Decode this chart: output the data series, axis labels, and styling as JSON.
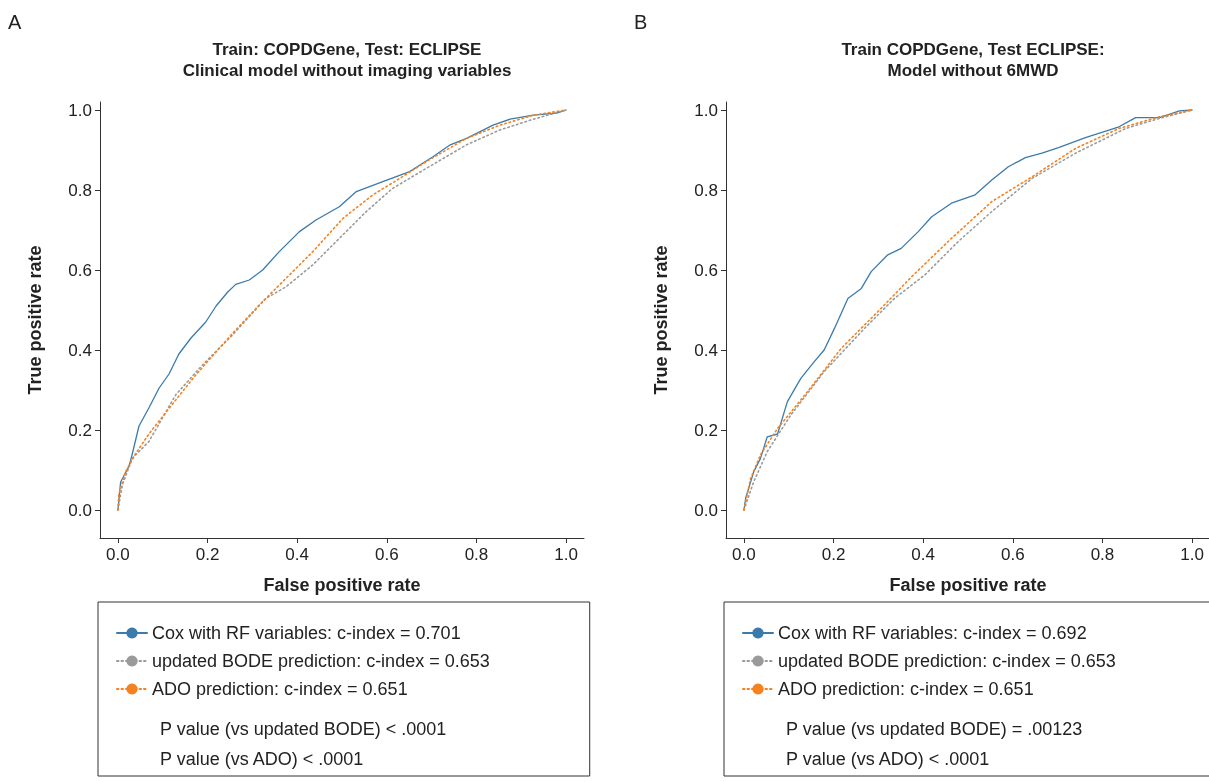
{
  "chart_data": [
    {
      "type": "line",
      "title": "Train: COPDGene, Test: ECLIPSE",
      "subtitle": "Clinical model without imaging variables",
      "xlabel": "False positive rate",
      "ylabel": "True positive rate",
      "annotations": [
        "A",
        "P value (vs updated BODE) < .0001",
        "P value (vs ADO) < .0001"
      ],
      "xlim": [
        -0.04,
        1.04
      ],
      "ylim": [
        -0.07,
        1.02
      ],
      "xticks": [
        {
          "value": 0,
          "label": "0.0"
        },
        {
          "value": 0.2,
          "label": "0.2"
        },
        {
          "value": 0.4,
          "label": "0.4"
        },
        {
          "value": 0.6,
          "label": "0.6"
        },
        {
          "value": 0.8,
          "label": "0.8"
        },
        {
          "value": 1,
          "label": "1.0"
        }
      ],
      "yticks": [
        {
          "value": 0,
          "label": "0.0"
        },
        {
          "value": 0.2,
          "label": "0.2"
        },
        {
          "value": 0.4,
          "label": "0.4"
        },
        {
          "value": 0.6,
          "label": "0.6"
        },
        {
          "value": 0.8,
          "label": "0.8"
        },
        {
          "value": 1,
          "label": "1.0"
        }
      ],
      "grid": false,
      "legend": "bottom",
      "marker": "none",
      "series": [
        {
          "name": "Cox with RF variables: c-index = 0.701",
          "color": "#3b7bab",
          "line_style": "solid",
          "x": [
            0,
            0.006,
            0.025,
            0.032,
            0.047,
            0.069,
            0.092,
            0.114,
            0.136,
            0.163,
            0.196,
            0.219,
            0.245,
            0.263,
            0.293,
            0.323,
            0.36,
            0.405,
            0.442,
            0.494,
            0.532,
            0.591,
            0.651,
            0.703,
            0.74,
            0.778,
            0.837,
            0.875,
            0.927,
            0.979,
            1
          ],
          "values": [
            0,
            0.07,
            0.11,
            0.14,
            0.21,
            0.255,
            0.305,
            0.34,
            0.39,
            0.43,
            0.47,
            0.51,
            0.545,
            0.564,
            0.575,
            0.6,
            0.646,
            0.696,
            0.725,
            0.758,
            0.796,
            0.821,
            0.846,
            0.883,
            0.912,
            0.929,
            0.962,
            0.977,
            0.987,
            0.992,
            1
          ]
        },
        {
          "name": "updated BODE prediction: c-index = 0.653",
          "color": "#9a9a9a",
          "line_style": "dotted",
          "x": [
            0,
            0.01,
            0.032,
            0.069,
            0.129,
            0.189,
            0.256,
            0.33,
            0.375,
            0.435,
            0.494,
            0.554,
            0.613,
            0.688,
            0.778,
            0.852,
            0.927,
            1
          ],
          "values": [
            0,
            0.063,
            0.129,
            0.171,
            0.288,
            0.363,
            0.438,
            0.529,
            0.558,
            0.613,
            0.679,
            0.746,
            0.804,
            0.854,
            0.913,
            0.95,
            0.977,
            1
          ]
        },
        {
          "name": "ADO prediction: c-index = 0.651",
          "color": "#f5821f",
          "line_style": "dotted",
          "x": [
            0,
            0.002,
            0.017,
            0.039,
            0.069,
            0.114,
            0.174,
            0.256,
            0.315,
            0.375,
            0.435,
            0.502,
            0.569,
            0.629,
            0.688,
            0.778,
            0.852,
            0.927,
            1
          ],
          "values": [
            0,
            0.04,
            0.096,
            0.14,
            0.19,
            0.254,
            0.338,
            0.442,
            0.512,
            0.579,
            0.646,
            0.729,
            0.788,
            0.829,
            0.871,
            0.929,
            0.962,
            0.987,
            1
          ]
        }
      ]
    },
    {
      "type": "line",
      "title": "Train COPDGene, Test ECLIPSE:",
      "subtitle": "Model without 6MWD",
      "xlabel": "False positive rate",
      "ylabel": "True positive rate",
      "annotations": [
        "B",
        "P value (vs updated BODE) = .00123",
        "P value (vs ADO) < .0001"
      ],
      "xlim": [
        -0.04,
        1.04
      ],
      "ylim": [
        -0.07,
        1.02
      ],
      "xticks": [
        {
          "value": 0,
          "label": "0.0"
        },
        {
          "value": 0.2,
          "label": "0.2"
        },
        {
          "value": 0.4,
          "label": "0.4"
        },
        {
          "value": 0.6,
          "label": "0.6"
        },
        {
          "value": 0.8,
          "label": "0.8"
        },
        {
          "value": 1,
          "label": "1.0"
        }
      ],
      "yticks": [
        {
          "value": 0,
          "label": "0.0"
        },
        {
          "value": 0.2,
          "label": "0.2"
        },
        {
          "value": 0.4,
          "label": "0.4"
        },
        {
          "value": 0.6,
          "label": "0.6"
        },
        {
          "value": 0.8,
          "label": "0.8"
        },
        {
          "value": 1,
          "label": "1.0"
        }
      ],
      "grid": false,
      "legend": "bottom",
      "marker": "none",
      "series": [
        {
          "name": "Cox with RF variables: c-index = 0.692",
          "color": "#3b7bab",
          "line_style": "solid",
          "x": [
            0,
            0.004,
            0.022,
            0.037,
            0.052,
            0.075,
            0.097,
            0.127,
            0.157,
            0.179,
            0.202,
            0.232,
            0.262,
            0.284,
            0.321,
            0.351,
            0.389,
            0.419,
            0.463,
            0.516,
            0.553,
            0.59,
            0.628,
            0.665,
            0.702,
            0.762,
            0.837,
            0.874,
            0.927,
            0.972,
            1
          ],
          "values": [
            0,
            0.03,
            0.096,
            0.129,
            0.183,
            0.19,
            0.271,
            0.329,
            0.371,
            0.4,
            0.454,
            0.529,
            0.554,
            0.596,
            0.638,
            0.654,
            0.696,
            0.733,
            0.767,
            0.788,
            0.825,
            0.858,
            0.881,
            0.892,
            0.906,
            0.931,
            0.958,
            0.981,
            0.981,
            0.998,
            1
          ]
        },
        {
          "name": "updated BODE prediction: c-index = 0.653",
          "color": "#9a9a9a",
          "line_style": "dotted",
          "x": [
            0,
            0.022,
            0.052,
            0.105,
            0.179,
            0.269,
            0.336,
            0.404,
            0.478,
            0.553,
            0.643,
            0.74,
            0.852,
            0.927,
            1
          ],
          "values": [
            0,
            0.071,
            0.146,
            0.238,
            0.346,
            0.454,
            0.529,
            0.588,
            0.671,
            0.746,
            0.829,
            0.892,
            0.954,
            0.979,
            1
          ]
        },
        {
          "name": "ADO prediction: c-index = 0.651",
          "color": "#f5821f",
          "line_style": "dotted",
          "x": [
            0,
            0.015,
            0.037,
            0.075,
            0.142,
            0.217,
            0.306,
            0.374,
            0.463,
            0.553,
            0.643,
            0.74,
            0.837,
            0.927,
            1
          ],
          "values": [
            0,
            0.079,
            0.138,
            0.204,
            0.296,
            0.404,
            0.504,
            0.583,
            0.679,
            0.771,
            0.833,
            0.904,
            0.954,
            0.983,
            1
          ]
        }
      ]
    }
  ]
}
